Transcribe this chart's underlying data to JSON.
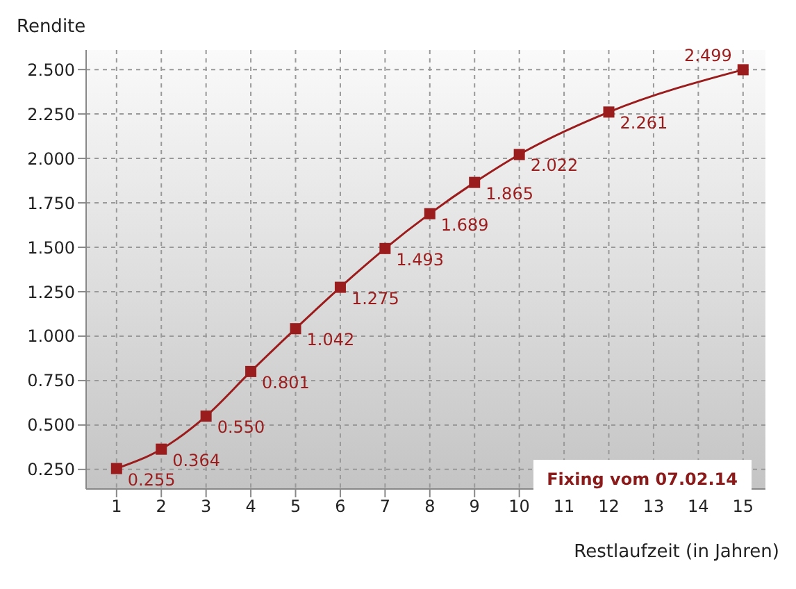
{
  "chart_data": {
    "type": "line",
    "xlabel": "Restlaufzeit (in Jahren)",
    "ylabel": "Rendite",
    "x": [
      1,
      2,
      3,
      4,
      5,
      6,
      7,
      8,
      9,
      10,
      12,
      15
    ],
    "series": [
      {
        "color": "#9b1c1c",
        "values": [
          0.255,
          0.364,
          0.55,
          0.801,
          1.042,
          1.275,
          1.493,
          1.689,
          1.865,
          2.022,
          2.261,
          2.499
        ],
        "value_labels": [
          "0.255",
          "0.364",
          "0.550",
          "0.801",
          "1.042",
          "1.275",
          "1.493",
          "1.689",
          "1.865",
          "2.022",
          "2.261",
          "2.499"
        ]
      }
    ],
    "xlim": [
      0.32,
      15.5
    ],
    "xticks": [
      1,
      2,
      3,
      4,
      5,
      6,
      7,
      8,
      9,
      10,
      11,
      12,
      13,
      14,
      15
    ],
    "ylim": [
      0.14,
      2.61
    ],
    "yticks": [
      {
        "value": 0.25,
        "label": "0.250"
      },
      {
        "value": 0.5,
        "label": "0.500"
      },
      {
        "value": 0.75,
        "label": "0.750"
      },
      {
        "value": 1,
        "label": "1.000"
      },
      {
        "value": 1.25,
        "label": "1.250"
      },
      {
        "value": 1.5,
        "label": "1.500"
      },
      {
        "value": 1.75,
        "label": "1.750"
      },
      {
        "value": 2,
        "label": "2.000"
      },
      {
        "value": 2.25,
        "label": "2.250"
      },
      {
        "value": 2.5,
        "label": "2.500"
      }
    ],
    "grid": true,
    "marker": "square",
    "line_style": "solid",
    "annotations": [
      "Fixing vom 07.02.14"
    ]
  }
}
